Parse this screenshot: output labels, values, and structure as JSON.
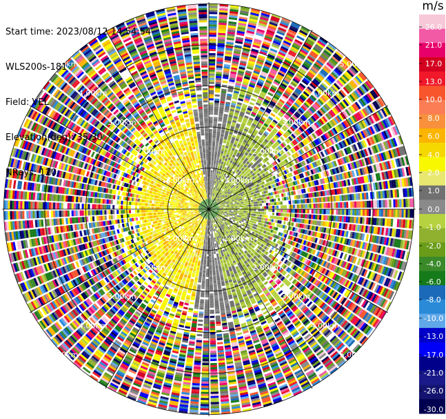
{
  "header": {
    "start_time": "Start time: 2023/08/12 14:54:54",
    "instrument": "WLS200s-181",
    "field": "Field: VEL",
    "elevation": "Elevation(deg): 35.30",
    "nrays": "NRays: 120"
  },
  "colorbar": {
    "unit": "m/s",
    "ticks": [
      "26.0",
      "21.0",
      "17.0",
      "13.0",
      "10.0",
      "8.0",
      "6.0",
      "4.0",
      "2.0",
      "1.0",
      "0.0",
      "-1.0",
      "-2.0",
      "-4.0",
      "-6.0",
      "-8.0",
      "-10.0",
      "-13.0",
      "-17.0",
      "-21.0",
      "-26.0",
      "-30.0"
    ],
    "colors": [
      "#f7c8d8",
      "#f25aa6",
      "#e8006a",
      "#d40020",
      "#f0182a",
      "#f8552d",
      "#fb7d55",
      "#f8903c",
      "#fbb400",
      "#f5d800",
      "#f8f800",
      "#e8e870",
      "#707070",
      "#8a8a8a",
      "#b6d240",
      "#90b030",
      "#6a9c1a",
      "#3a8a2a",
      "#157a1a",
      "#1a6ab8",
      "#2a8ad8",
      "#60a8e8",
      "#0000c8",
      "#0000f8",
      "#00008a",
      "#1a1a8a",
      "#141470",
      "#000050"
    ]
  },
  "chart_data": {
    "type": "heatmap",
    "title": "",
    "projection": "PPI",
    "field": "VEL",
    "elevation_deg": 35.3,
    "n_rays": 120,
    "range_rings_km": [
      1.0,
      2.0,
      3.0,
      4.0,
      5.0
    ],
    "ring_labels": [
      "1.00km",
      "2.00km",
      "3.00km",
      "4.00km",
      "5.00km"
    ],
    "colorbar_range": [
      -30.0,
      26.0
    ],
    "colorbar_unit": "m/s"
  }
}
